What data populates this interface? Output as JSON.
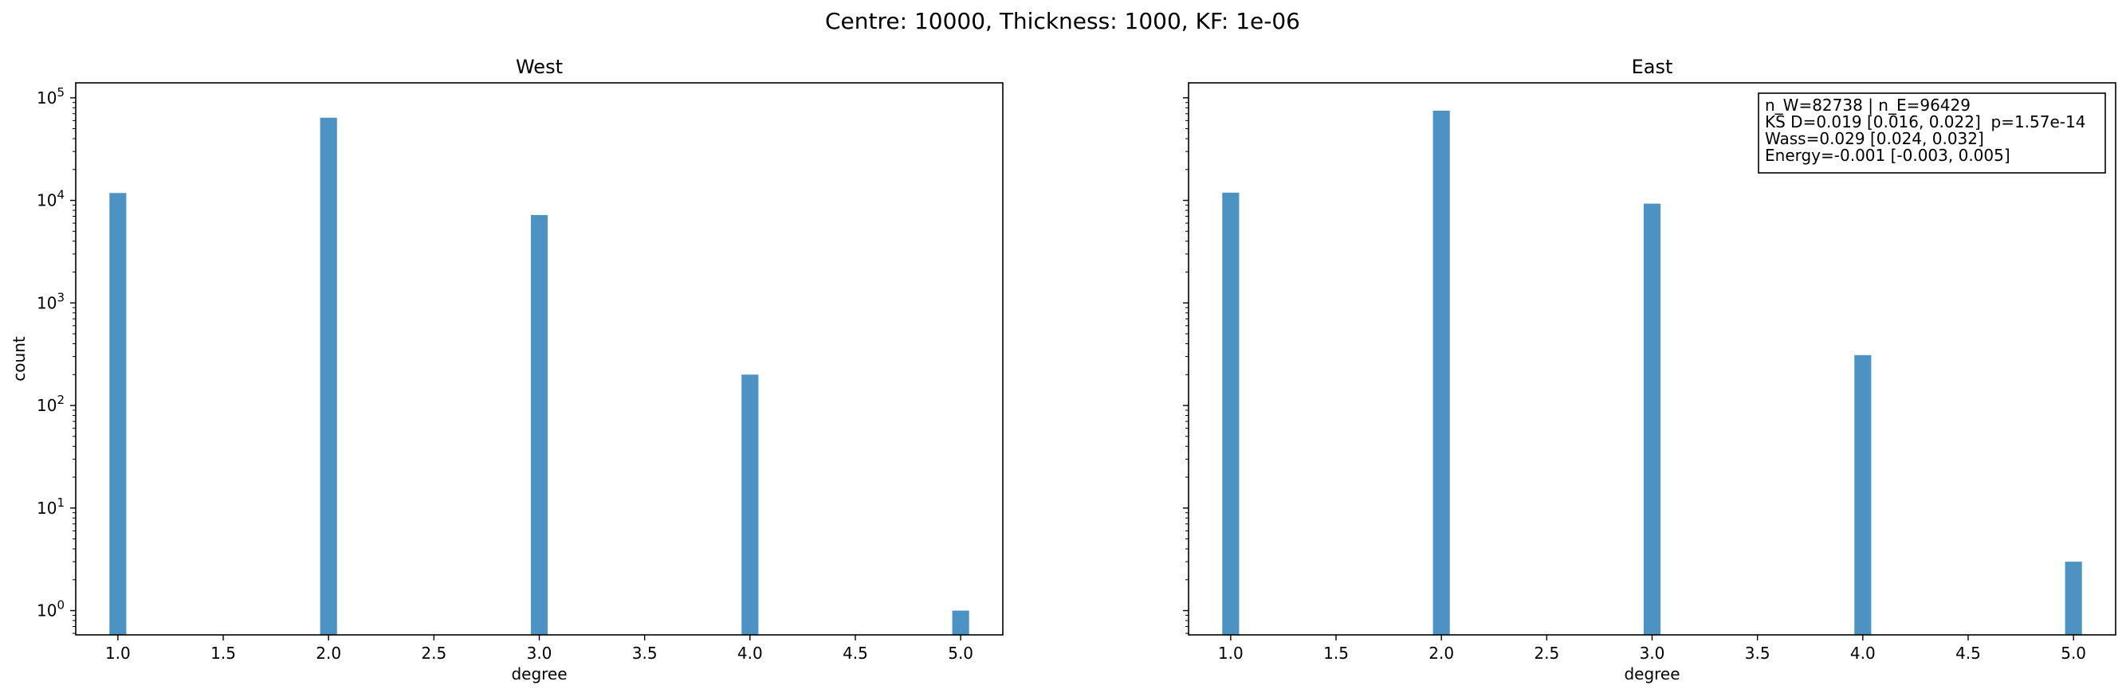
{
  "suptitle": "Centre: 10000, Thickness: 1000, KF: 1e-06",
  "chart_data": [
    {
      "type": "bar",
      "title": "West",
      "xlabel": "degree",
      "ylabel": "count",
      "yscale": "log",
      "xlim": [
        0.8,
        5.2
      ],
      "ylim": [
        0.58,
        140000
      ],
      "xticks": [
        "1.0",
        "1.5",
        "2.0",
        "2.5",
        "3.0",
        "3.5",
        "4.0",
        "4.5",
        "5.0"
      ],
      "yticks": [
        {
          "base": "10",
          "exp": "0"
        },
        {
          "base": "10",
          "exp": "1"
        },
        {
          "base": "10",
          "exp": "2"
        },
        {
          "base": "10",
          "exp": "3"
        },
        {
          "base": "10",
          "exp": "4"
        },
        {
          "base": "10",
          "exp": "5"
        }
      ],
      "categories": [
        1,
        2,
        3,
        4,
        5
      ],
      "values": [
        11800,
        64000,
        7200,
        200,
        1
      ],
      "color": "#4c93c3",
      "grid": false
    },
    {
      "type": "bar",
      "title": "East",
      "xlabel": "degree",
      "ylabel": "",
      "yscale": "log",
      "xlim": [
        0.8,
        5.2
      ],
      "ylim": [
        0.58,
        140000
      ],
      "xticks": [
        "1.0",
        "1.5",
        "2.0",
        "2.5",
        "3.0",
        "3.5",
        "4.0",
        "4.5",
        "5.0"
      ],
      "yticks": [],
      "categories": [
        1,
        2,
        3,
        4,
        5
      ],
      "values": [
        11900,
        75000,
        9300,
        310,
        3
      ],
      "color": "#4c93c3",
      "grid": false,
      "annotation": [
        "n_W=82738 | n_E=96429",
        "KS D=0.019 [0.016, 0.022]  p=1.57e-14",
        "Wass=0.029 [0.024, 0.032]",
        "Energy=-0.001 [-0.003, 0.005]"
      ],
      "annotation_position": "top-right"
    }
  ]
}
